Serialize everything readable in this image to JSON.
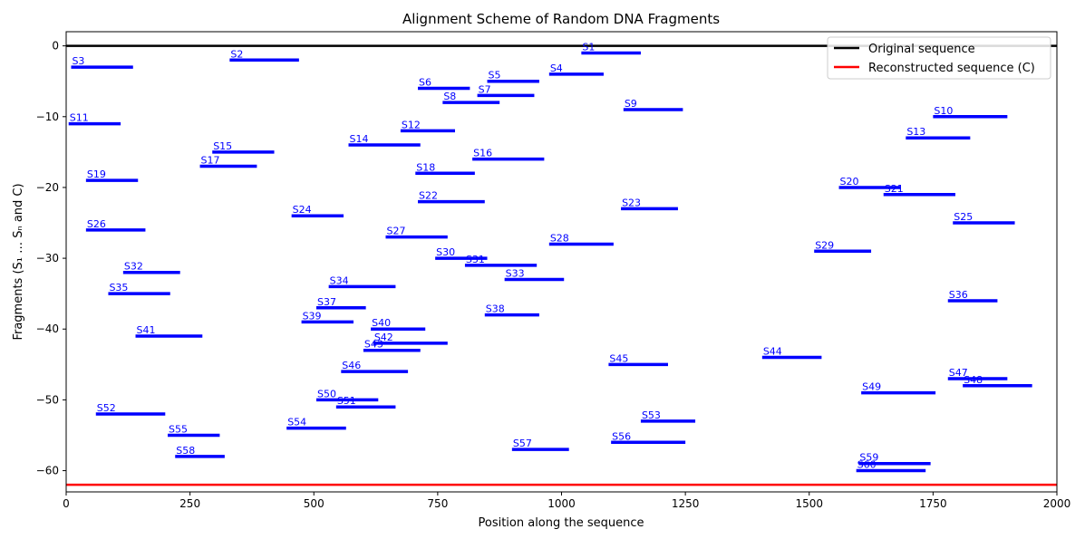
{
  "chart_data": {
    "type": "line",
    "title": "Alignment Scheme of Random DNA Fragments",
    "xlabel": "Position along the sequence",
    "ylabel": "Fragments (S₁ … Sₙ and C)",
    "xlim": [
      0,
      2000
    ],
    "ylim": [
      -63,
      2
    ],
    "xticks": [
      0,
      250,
      500,
      750,
      1000,
      1250,
      1500,
      1750,
      2000
    ],
    "yticks": [
      0,
      -10,
      -20,
      -30,
      -40,
      -50,
      -60
    ],
    "grid": false,
    "legend_position": "top-right",
    "colors": {
      "original": "#000000",
      "reconstructed": "#ff0000",
      "fragment": "#0000ff"
    },
    "series": [
      {
        "name": "Original sequence",
        "x": [
          0,
          2000
        ],
        "y": [
          0,
          0
        ]
      },
      {
        "name": "Reconstructed sequence (C)",
        "x": [
          0,
          2000
        ],
        "y": [
          -62,
          -62
        ]
      }
    ],
    "fragments": [
      {
        "label": "S1",
        "start": 1040,
        "end": 1160,
        "y": -1
      },
      {
        "label": "S2",
        "start": 330,
        "end": 470,
        "y": -2
      },
      {
        "label": "S3",
        "start": 10,
        "end": 135,
        "y": -3
      },
      {
        "label": "S4",
        "start": 975,
        "end": 1085,
        "y": -4
      },
      {
        "label": "S5",
        "start": 850,
        "end": 955,
        "y": -5
      },
      {
        "label": "S6",
        "start": 710,
        "end": 815,
        "y": -6
      },
      {
        "label": "S7",
        "start": 830,
        "end": 945,
        "y": -7
      },
      {
        "label": "S8",
        "start": 760,
        "end": 875,
        "y": -8
      },
      {
        "label": "S9",
        "start": 1125,
        "end": 1245,
        "y": -9
      },
      {
        "label": "S10",
        "start": 1750,
        "end": 1900,
        "y": -10
      },
      {
        "label": "S11",
        "start": 5,
        "end": 110,
        "y": -11
      },
      {
        "label": "S12",
        "start": 675,
        "end": 785,
        "y": -12
      },
      {
        "label": "S13",
        "start": 1695,
        "end": 1825,
        "y": -13
      },
      {
        "label": "S14",
        "start": 570,
        "end": 715,
        "y": -14
      },
      {
        "label": "S15",
        "start": 295,
        "end": 420,
        "y": -15
      },
      {
        "label": "S16",
        "start": 820,
        "end": 965,
        "y": -16
      },
      {
        "label": "S17",
        "start": 270,
        "end": 385,
        "y": -17
      },
      {
        "label": "S18",
        "start": 705,
        "end": 825,
        "y": -18
      },
      {
        "label": "S19",
        "start": 40,
        "end": 145,
        "y": -19
      },
      {
        "label": "S20",
        "start": 1560,
        "end": 1685,
        "y": -20
      },
      {
        "label": "S21",
        "start": 1650,
        "end": 1795,
        "y": -21
      },
      {
        "label": "S22",
        "start": 710,
        "end": 845,
        "y": -22
      },
      {
        "label": "S23",
        "start": 1120,
        "end": 1235,
        "y": -23
      },
      {
        "label": "S24",
        "start": 455,
        "end": 560,
        "y": -24
      },
      {
        "label": "S25",
        "start": 1790,
        "end": 1915,
        "y": -25
      },
      {
        "label": "S26",
        "start": 40,
        "end": 160,
        "y": -26
      },
      {
        "label": "S27",
        "start": 645,
        "end": 770,
        "y": -27
      },
      {
        "label": "S28",
        "start": 975,
        "end": 1105,
        "y": -28
      },
      {
        "label": "S29",
        "start": 1510,
        "end": 1625,
        "y": -29
      },
      {
        "label": "S30",
        "start": 745,
        "end": 850,
        "y": -30
      },
      {
        "label": "S31",
        "start": 805,
        "end": 950,
        "y": -31
      },
      {
        "label": "S32",
        "start": 115,
        "end": 230,
        "y": -32
      },
      {
        "label": "S33",
        "start": 885,
        "end": 1005,
        "y": -33
      },
      {
        "label": "S34",
        "start": 530,
        "end": 665,
        "y": -34
      },
      {
        "label": "S35",
        "start": 85,
        "end": 210,
        "y": -35
      },
      {
        "label": "S36",
        "start": 1780,
        "end": 1880,
        "y": -36
      },
      {
        "label": "S37",
        "start": 505,
        "end": 605,
        "y": -37
      },
      {
        "label": "S38",
        "start": 845,
        "end": 955,
        "y": -38
      },
      {
        "label": "S39",
        "start": 475,
        "end": 580,
        "y": -39
      },
      {
        "label": "S40",
        "start": 615,
        "end": 725,
        "y": -40
      },
      {
        "label": "S41",
        "start": 140,
        "end": 275,
        "y": -41
      },
      {
        "label": "S42",
        "start": 620,
        "end": 770,
        "y": -42
      },
      {
        "label": "S43",
        "start": 600,
        "end": 715,
        "y": -43
      },
      {
        "label": "S44",
        "start": 1405,
        "end": 1525,
        "y": -44
      },
      {
        "label": "S45",
        "start": 1095,
        "end": 1215,
        "y": -45
      },
      {
        "label": "S46",
        "start": 555,
        "end": 690,
        "y": -46
      },
      {
        "label": "S47",
        "start": 1780,
        "end": 1900,
        "y": -47
      },
      {
        "label": "S48",
        "start": 1810,
        "end": 1950,
        "y": -48
      },
      {
        "label": "S49",
        "start": 1605,
        "end": 1755,
        "y": -49
      },
      {
        "label": "S50",
        "start": 505,
        "end": 630,
        "y": -50
      },
      {
        "label": "S51",
        "start": 545,
        "end": 665,
        "y": -51
      },
      {
        "label": "S52",
        "start": 60,
        "end": 200,
        "y": -52
      },
      {
        "label": "S53",
        "start": 1160,
        "end": 1270,
        "y": -53
      },
      {
        "label": "S54",
        "start": 445,
        "end": 565,
        "y": -54
      },
      {
        "label": "S55",
        "start": 205,
        "end": 310,
        "y": -55
      },
      {
        "label": "S56",
        "start": 1100,
        "end": 1250,
        "y": -56
      },
      {
        "label": "S57",
        "start": 900,
        "end": 1015,
        "y": -57
      },
      {
        "label": "S58",
        "start": 220,
        "end": 320,
        "y": -58
      },
      {
        "label": "S59",
        "start": 1600,
        "end": 1745,
        "y": -59
      },
      {
        "label": "S60",
        "start": 1595,
        "end": 1735,
        "y": -60
      }
    ]
  }
}
